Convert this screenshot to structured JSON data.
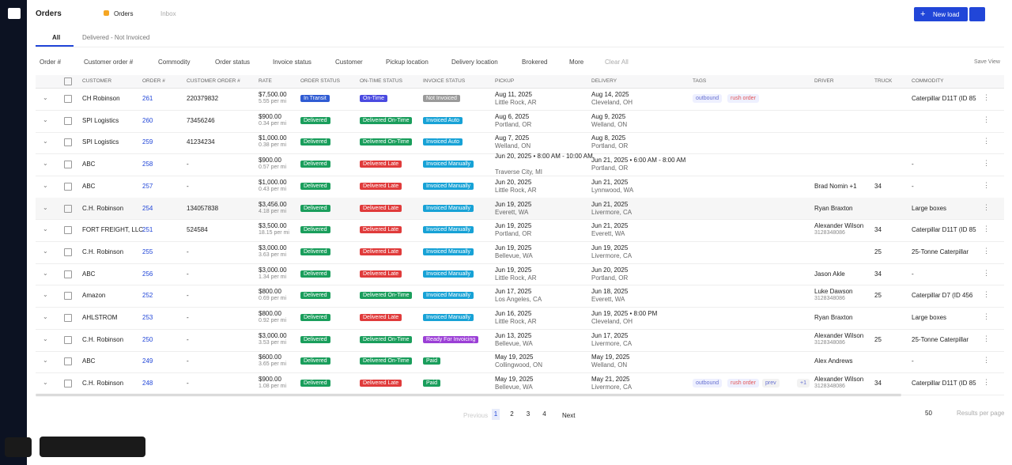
{
  "header": {
    "title": "Orders",
    "tabs": [
      "Orders",
      "Inbox"
    ],
    "new_button": "New load"
  },
  "subtabs": [
    "All",
    "Delivered - Not Invoiced"
  ],
  "filters": [
    "Order #",
    "Customer order #",
    "Commodity",
    "Order status",
    "Invoice status",
    "Customer",
    "Pickup location",
    "Delivery location",
    "Brokered",
    "More"
  ],
  "clear_all": "Clear All",
  "save_view": "Save View",
  "table": {
    "columns": [
      "CUSTOMER",
      "ORDER #",
      "CUSTOMER ORDER #",
      "RATE",
      "ORDER STATUS",
      "ON-TIME STATUS",
      "INVOICE STATUS",
      "PICKUP",
      "DELIVERY",
      "TAGS",
      "DRIVER",
      "TRUCK",
      "COMMODITY"
    ],
    "rows": [
      {
        "customer": "CH Robinson",
        "order": "261",
        "customer_order": "220379832",
        "rate": "$7,500.00",
        "rate_per": "5.55 per mi",
        "order_status": "In Transit",
        "order_status_color": "#2f5bd3",
        "ontime": "On-Time",
        "ontime_color": "#4a4ae0",
        "invoice": "Not Invoiced",
        "invoice_color": "#9a9a9a",
        "pickup_date": "Aug 11, 2025",
        "pickup_loc": "Little Rock, AR",
        "delivery_date": "Aug 14, 2025",
        "delivery_loc": "Cleveland, OH",
        "tags": [
          "outbound",
          "rush order"
        ],
        "commodity": "Caterpillar D11T (ID 85"
      },
      {
        "customer": "SPI Logistics",
        "order": "260",
        "customer_order": "73456246",
        "rate": "$900.00",
        "rate_per": "0.34 per mi",
        "order_status": "Delivered",
        "order_status_color": "#1a9e5c",
        "ontime": "Delivered On-Time",
        "ontime_color": "#1a9e5c",
        "invoice": "Invoiced Auto",
        "invoice_color": "#17a2d6",
        "pickup_date": "Aug 6, 2025",
        "pickup_loc": "Portland, OR",
        "delivery_date": "Aug 9, 2025",
        "delivery_loc": "Welland, ON"
      },
      {
        "customer": "SPI Logistics",
        "order": "259",
        "customer_order": "41234234",
        "rate": "$1,000.00",
        "rate_per": "0.38 per mi",
        "order_status": "Delivered",
        "order_status_color": "#1a9e5c",
        "ontime": "Delivered On-Time",
        "ontime_color": "#1a9e5c",
        "invoice": "Invoiced Auto",
        "invoice_color": "#17a2d6",
        "pickup_date": "Aug 7, 2025",
        "pickup_loc": "Welland, ON",
        "delivery_date": "Aug 8, 2025",
        "delivery_loc": "Portland, OR"
      },
      {
        "customer": "ABC",
        "order": "258",
        "customer_order": "-",
        "rate": "$900.00",
        "rate_per": "0.57 per mi",
        "order_status": "Delivered",
        "order_status_color": "#1a9e5c",
        "ontime": "Delivered Late",
        "ontime_color": "#e03b3b",
        "invoice": "Invoiced Manually",
        "invoice_color": "#17a2d6",
        "pickup_date": "Jun 20, 2025 • 8:00 AM - 10:00 AM",
        "pickup_loc": "Traverse City, MI",
        "delivery_date": "Jun 21, 2025 • 6:00 AM - 8:00 AM",
        "delivery_loc": "Portland, OR",
        "commodity": "-"
      },
      {
        "customer": "ABC",
        "order": "257",
        "customer_order": "-",
        "rate": "$1,000.00",
        "rate_per": "0.43 per mi",
        "order_status": "Delivered",
        "order_status_color": "#1a9e5c",
        "ontime": "Delivered Late",
        "ontime_color": "#e03b3b",
        "invoice": "Invoiced Manually",
        "invoice_color": "#17a2d6",
        "pickup_date": "Jun 20, 2025",
        "pickup_loc": "Little Rock, AR",
        "delivery_date": "Jun 21, 2025",
        "delivery_loc": "Lynnwood, WA",
        "driver": "Brad Nomin +1",
        "truck": "34",
        "commodity": "-"
      },
      {
        "customer": "C.H. Robinson",
        "order": "254",
        "customer_order": "134057838",
        "rate": "$3,456.00",
        "rate_per": "4.18 per mi",
        "order_status": "Delivered",
        "order_status_color": "#1a9e5c",
        "ontime": "Delivered Late",
        "ontime_color": "#e03b3b",
        "invoice": "Invoiced Manually",
        "invoice_color": "#17a2d6",
        "pickup_date": "Jun 19, 2025",
        "pickup_loc": "Everett, WA",
        "delivery_date": "Jun 21, 2025",
        "delivery_loc": "Livermore, CA",
        "driver": "Ryan Braxton",
        "commodity": "Large boxes"
      },
      {
        "customer": "FORT FREIGHT, LLC",
        "order": "251",
        "customer_order": "524584",
        "rate": "$3,500.00",
        "rate_per": "18.15 per mi",
        "order_status": "Delivered",
        "order_status_color": "#1a9e5c",
        "ontime": "Delivered Late",
        "ontime_color": "#e03b3b",
        "invoice": "Invoiced Manually",
        "invoice_color": "#17a2d6",
        "pickup_date": "Jun 19, 2025",
        "pickup_loc": "Portland, OR",
        "delivery_date": "Jun 21, 2025",
        "delivery_loc": "Everett, WA",
        "driver": "Alexander Wilson",
        "driver_phone": "3128348086",
        "truck": "34",
        "commodity": "Caterpillar D11T (ID 85"
      },
      {
        "customer": "C.H. Robinson",
        "order": "255",
        "customer_order": "-",
        "rate": "$3,000.00",
        "rate_per": "3.63 per mi",
        "order_status": "Delivered",
        "order_status_color": "#1a9e5c",
        "ontime": "Delivered Late",
        "ontime_color": "#e03b3b",
        "invoice": "Invoiced Manually",
        "invoice_color": "#17a2d6",
        "pickup_date": "Jun 19, 2025",
        "pickup_loc": "Bellevue, WA",
        "delivery_date": "Jun 19, 2025",
        "delivery_loc": "Livermore, CA",
        "truck": "25",
        "commodity": "25-Tonne Caterpillar"
      },
      {
        "customer": "ABC",
        "order": "256",
        "customer_order": "-",
        "rate": "$3,000.00",
        "rate_per": "1.34 per mi",
        "order_status": "Delivered",
        "order_status_color": "#1a9e5c",
        "ontime": "Delivered Late",
        "ontime_color": "#e03b3b",
        "invoice": "Invoiced Manually",
        "invoice_color": "#17a2d6",
        "pickup_date": "Jun 19, 2025",
        "pickup_loc": "Little Rock, AR",
        "delivery_date": "Jun 20, 2025",
        "delivery_loc": "Portland, OR",
        "driver": "Jason Akle",
        "truck": "34",
        "commodity": "-"
      },
      {
        "customer": "Amazon",
        "order": "252",
        "customer_order": "-",
        "rate": "$800.00",
        "rate_per": "0.69 per mi",
        "order_status": "Delivered",
        "order_status_color": "#1a9e5c",
        "ontime": "Delivered On-Time",
        "ontime_color": "#1a9e5c",
        "invoice": "Invoiced Manually",
        "invoice_color": "#17a2d6",
        "pickup_date": "Jun 17, 2025",
        "pickup_loc": "Los Angeles, CA",
        "delivery_date": "Jun 18, 2025",
        "delivery_loc": "Everett, WA",
        "driver": "Luke Dawson",
        "driver_phone": "3128348086",
        "truck": "25",
        "commodity": "Caterpillar D7 (ID 456"
      },
      {
        "customer": "AHLSTROM",
        "order": "253",
        "customer_order": "-",
        "rate": "$800.00",
        "rate_per": "0.92 per mi",
        "order_status": "Delivered",
        "order_status_color": "#1a9e5c",
        "ontime": "Delivered Late",
        "ontime_color": "#e03b3b",
        "invoice": "Invoiced Manually",
        "invoice_color": "#17a2d6",
        "pickup_date": "Jun 16, 2025",
        "pickup_loc": "Little Rock, AR",
        "delivery_date": "Jun 19, 2025 • 8:00 PM",
        "delivery_loc": "Cleveland, OH",
        "driver": "Ryan Braxton",
        "commodity": "Large boxes"
      },
      {
        "customer": "C.H. Robinson",
        "order": "250",
        "customer_order": "-",
        "rate": "$3,000.00",
        "rate_per": "3.53 per mi",
        "order_status": "Delivered",
        "order_status_color": "#1a9e5c",
        "ontime": "Delivered On-Time",
        "ontime_color": "#1a9e5c",
        "invoice": "Ready For Invoicing",
        "invoice_color": "#9b3fd6",
        "pickup_date": "Jun 13, 2025",
        "pickup_loc": "Bellevue, WA",
        "delivery_date": "Jun 17, 2025",
        "delivery_loc": "Livermore, CA",
        "driver": "Alexander Wilson",
        "driver_phone": "3128348086",
        "truck": "25",
        "commodity": "25-Tonne Caterpillar"
      },
      {
        "customer": "ABC",
        "order": "249",
        "customer_order": "-",
        "rate": "$600.00",
        "rate_per": "3.65 per mi",
        "order_status": "Delivered",
        "order_status_color": "#1a9e5c",
        "ontime": "Delivered On-Time",
        "ontime_color": "#1a9e5c",
        "invoice": "Paid",
        "invoice_color": "#1a9e5c",
        "pickup_date": "May 19, 2025",
        "pickup_loc": "Collingwood, ON",
        "delivery_date": "May 19, 2025",
        "delivery_loc": "Welland, ON",
        "driver": "Alex Andrews",
        "commodity": "-"
      },
      {
        "customer": "C.H. Robinson",
        "order": "248",
        "customer_order": "-",
        "rate": "$900.00",
        "rate_per": "1.08 per mi",
        "order_status": "Delivered",
        "order_status_color": "#1a9e5c",
        "ontime": "Delivered Late",
        "ontime_color": "#e03b3b",
        "invoice": "Paid",
        "invoice_color": "#1a9e5c",
        "pickup_date": "May 19, 2025",
        "pickup_loc": "Bellevue, WA",
        "delivery_date": "May 21, 2025",
        "delivery_loc": "Livermore, CA",
        "tags": [
          "outbound",
          "rush order",
          "prev",
          "+1"
        ],
        "driver": "Alexander Wilson",
        "driver_phone": "3128348086",
        "truck": "34",
        "commodity": "Caterpillar D11T (ID 85"
      }
    ]
  },
  "pagination": {
    "previous": "Previous",
    "pages": [
      "1",
      "2",
      "3",
      "4"
    ],
    "next": "Next",
    "per_page": "50",
    "per_page_label": "Results per page"
  }
}
